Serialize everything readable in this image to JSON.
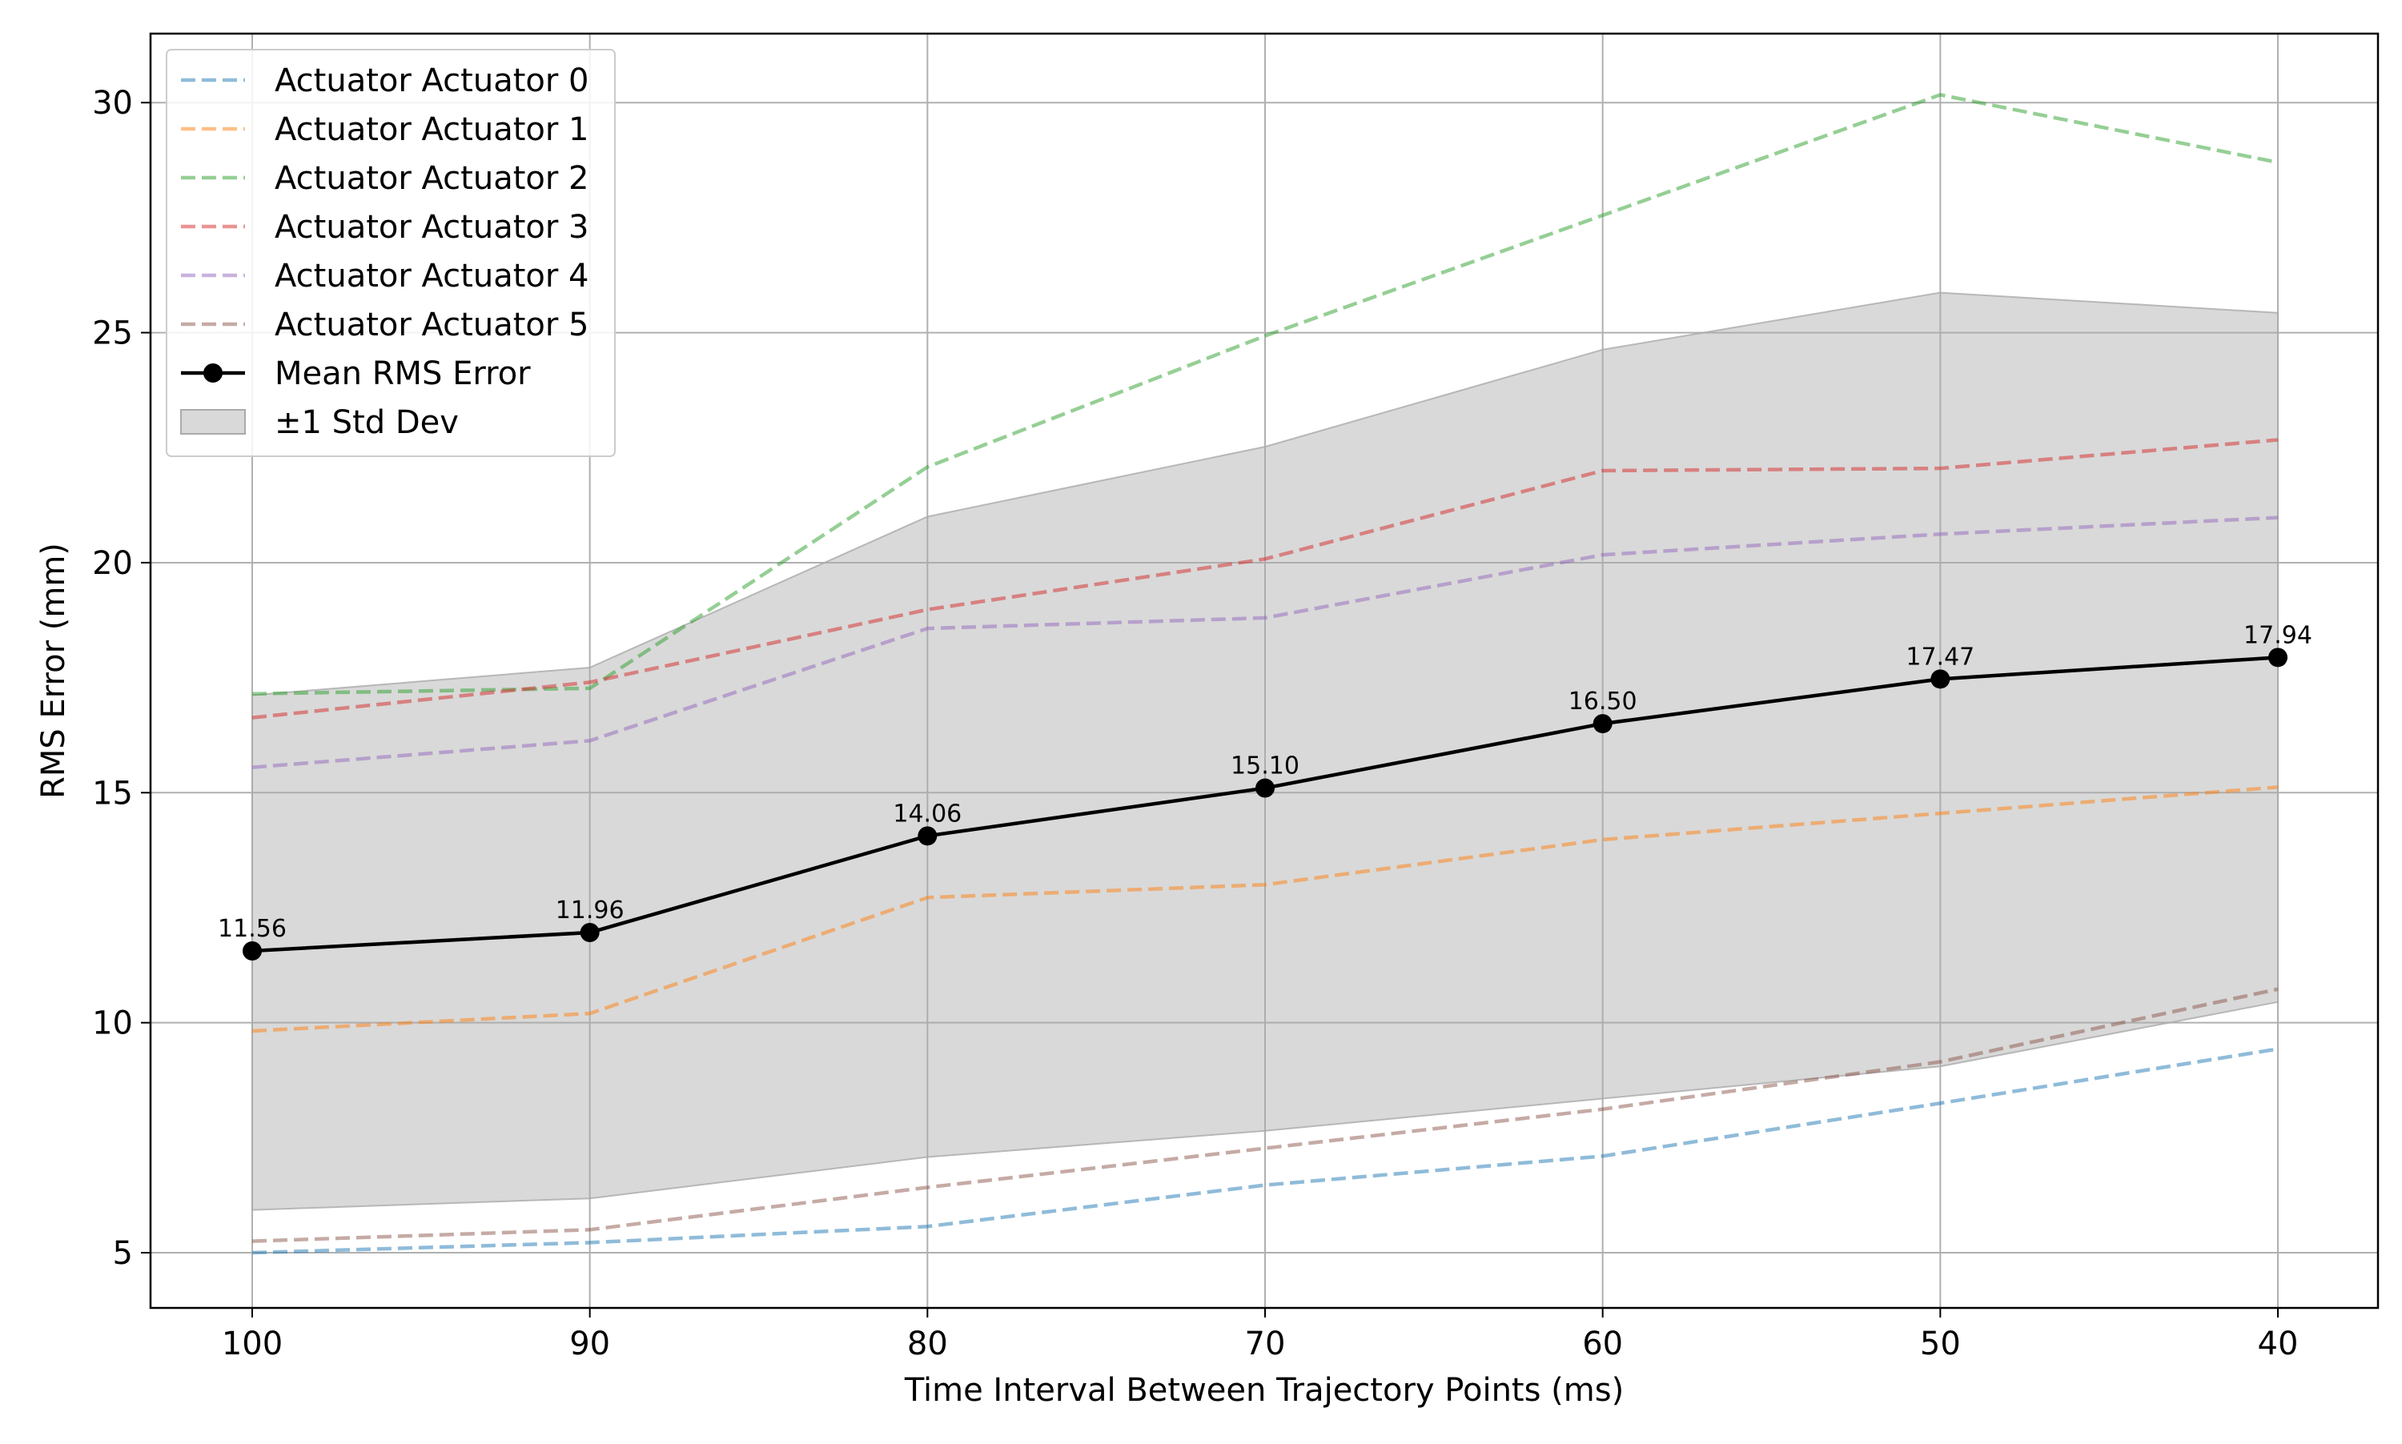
{
  "chart_data": {
    "type": "line",
    "title": "",
    "xlabel": "Time Interval Between Trajectory Points (ms)",
    "ylabel": "RMS Error (mm)",
    "x": [
      100,
      90,
      80,
      70,
      60,
      50,
      40
    ],
    "x_tick_labels": [
      "100",
      "90",
      "80",
      "70",
      "60",
      "50",
      "40"
    ],
    "x_axis_inverted": true,
    "y_ticks": [
      5,
      10,
      15,
      20,
      25,
      30
    ],
    "y_tick_labels": [
      "5",
      "10",
      "15",
      "20",
      "25",
      "30"
    ],
    "ylim": [
      3.8,
      31.5
    ],
    "grid": true,
    "legend_position": "upper-left",
    "series": [
      {
        "name": "Actuator Actuator 0",
        "color": "#1f77b4",
        "style": "dashed",
        "values": [
          5.0,
          5.22,
          5.57,
          6.47,
          7.1,
          8.25,
          9.43
        ]
      },
      {
        "name": "Actuator Actuator 1",
        "color": "#ff7f0e",
        "style": "dashed",
        "values": [
          9.82,
          10.2,
          12.72,
          13.0,
          13.98,
          14.55,
          15.12
        ]
      },
      {
        "name": "Actuator Actuator 2",
        "color": "#2ca02c",
        "style": "dashed",
        "values": [
          17.15,
          17.27,
          22.08,
          24.93,
          27.55,
          30.17,
          28.7
        ]
      },
      {
        "name": "Actuator Actuator 3",
        "color": "#d62728",
        "style": "dashed",
        "values": [
          16.63,
          17.4,
          18.98,
          20.08,
          22.0,
          22.05,
          22.67
        ]
      },
      {
        "name": "Actuator Actuator 4",
        "color": "#9467bd",
        "style": "dashed",
        "values": [
          15.55,
          16.13,
          18.57,
          18.8,
          20.17,
          20.62,
          20.98
        ]
      },
      {
        "name": "Actuator Actuator 5",
        "color": "#8c564b",
        "style": "dashed",
        "values": [
          5.25,
          5.5,
          6.42,
          7.27,
          8.12,
          9.15,
          10.73
        ]
      }
    ],
    "mean": {
      "name": "Mean RMS Error",
      "color": "#000000",
      "values": [
        11.56,
        11.96,
        14.06,
        15.1,
        16.5,
        17.47,
        17.94
      ],
      "labels": [
        "11.56",
        "11.96",
        "14.06",
        "15.10",
        "16.50",
        "17.47",
        "17.94"
      ]
    },
    "band": {
      "name": "±1 Std Dev",
      "color": "#aaaaaa",
      "lower": [
        5.93,
        6.18,
        7.08,
        7.65,
        8.35,
        9.05,
        10.45
      ],
      "upper": [
        17.12,
        17.72,
        21.0,
        22.52,
        24.63,
        25.87,
        25.43
      ]
    }
  }
}
